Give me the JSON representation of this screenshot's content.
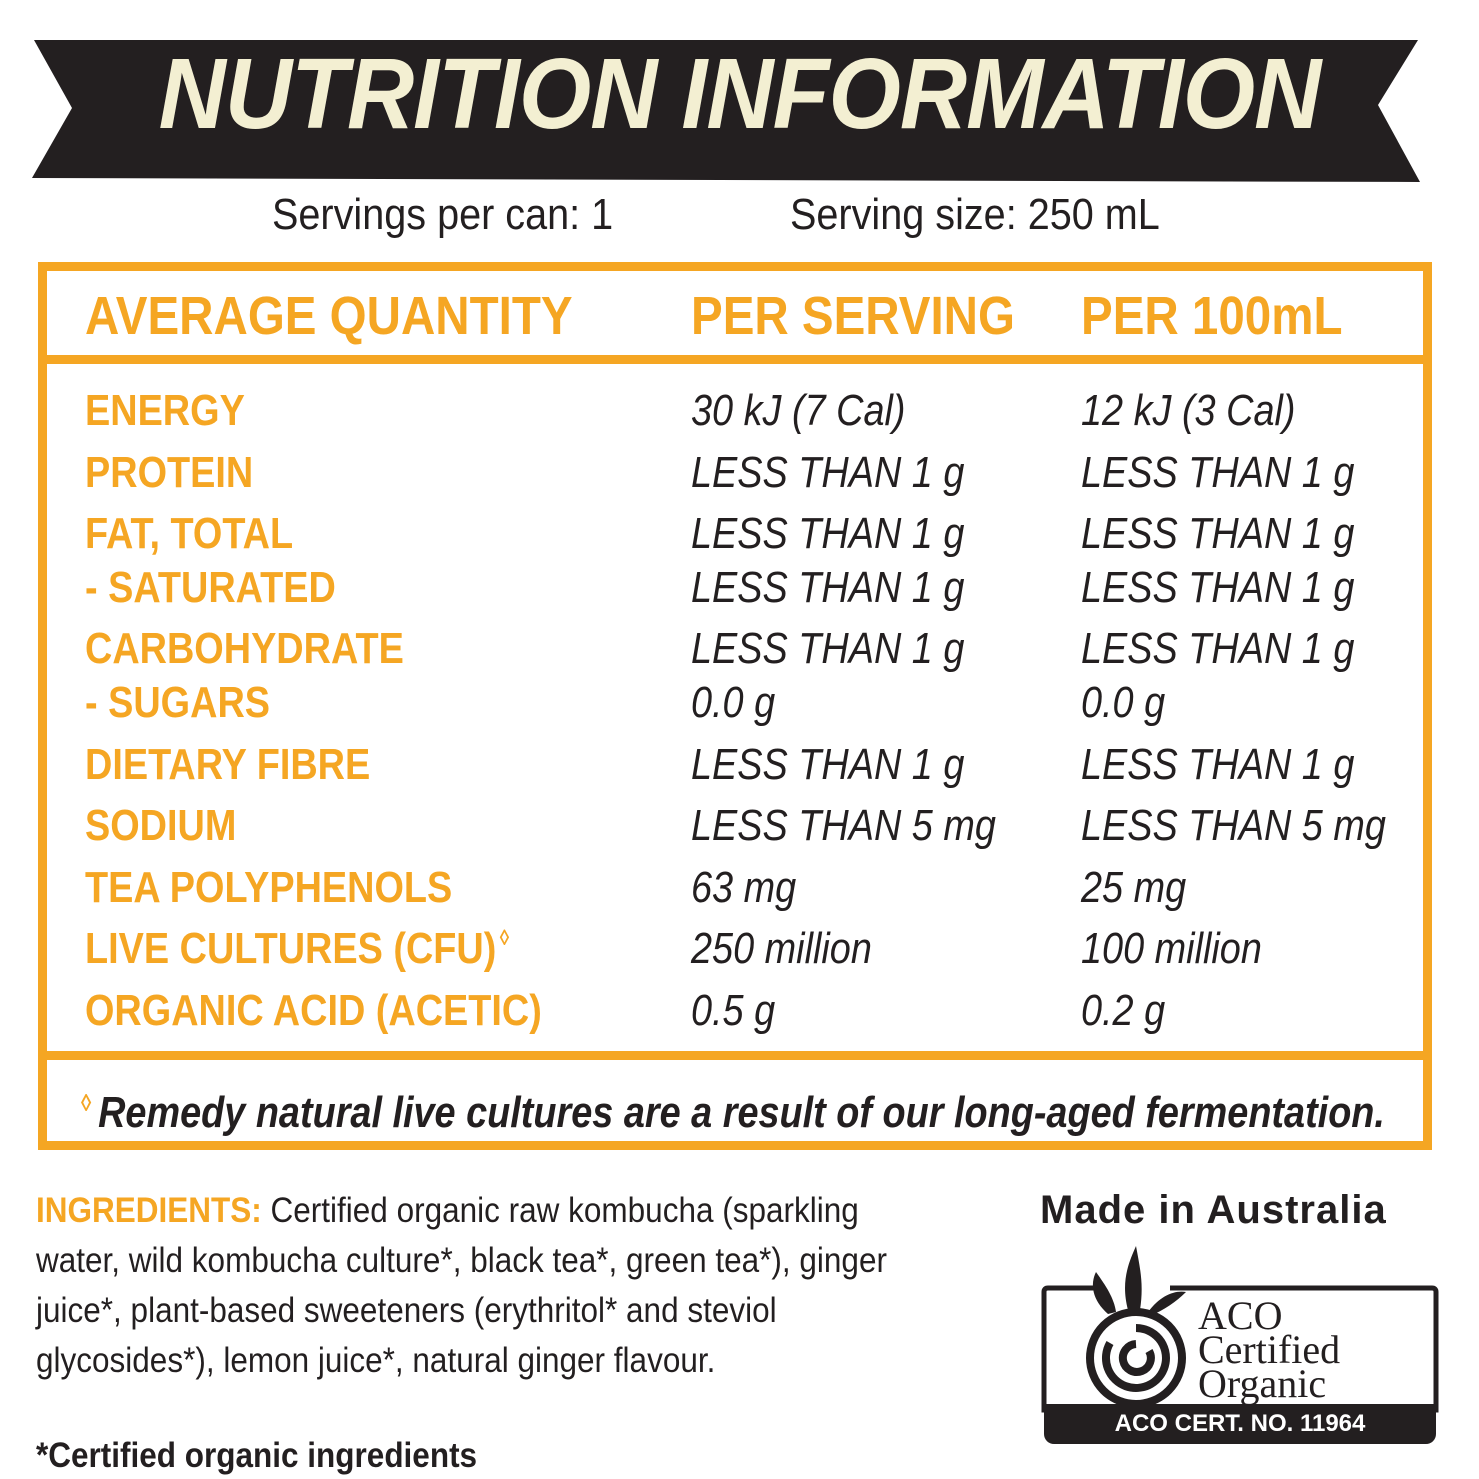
{
  "banner": {
    "title": "NUTRITION INFORMATION"
  },
  "servings": {
    "per_can": "Servings per can: 1",
    "size": "Serving size: 250 mL"
  },
  "table": {
    "headers": [
      "AVERAGE QUANTITY",
      "PER SERVING",
      "PER 100mL"
    ],
    "rows": [
      {
        "nutrient": "ENERGY",
        "per_serving": "30 kJ (7 Cal)",
        "per_100ml": "12 kJ (3 Cal)"
      },
      {
        "nutrient": "PROTEIN",
        "per_serving": "LESS THAN 1 g",
        "per_100ml": "LESS THAN 1 g"
      },
      {
        "nutrient": "FAT, TOTAL",
        "per_serving": "LESS THAN 1 g",
        "per_100ml": "LESS THAN 1 g"
      },
      {
        "nutrient": "- SATURATED",
        "per_serving": "LESS THAN 1 g",
        "per_100ml": "LESS THAN 1 g"
      },
      {
        "nutrient": "CARBOHYDRATE",
        "per_serving": "LESS THAN 1 g",
        "per_100ml": "LESS THAN 1 g"
      },
      {
        "nutrient": "- SUGARS",
        "per_serving": "0.0 g",
        "per_100ml": "0.0 g"
      },
      {
        "nutrient": "DIETARY FIBRE",
        "per_serving": "LESS THAN 1 g",
        "per_100ml": "LESS THAN 1 g"
      },
      {
        "nutrient": "SODIUM",
        "per_serving": "LESS THAN 5 mg",
        "per_100ml": "LESS THAN 5 mg"
      },
      {
        "nutrient": "TEA POLYPHENOLS",
        "per_serving": "63 mg",
        "per_100ml": "25 mg"
      },
      {
        "nutrient": "LIVE CULTURES (CFU)",
        "per_serving": "250 million",
        "per_100ml": "100 million"
      },
      {
        "nutrient": "ORGANIC ACID (ACETIC)",
        "per_serving": "0.5 g",
        "per_100ml": "0.2 g"
      }
    ],
    "footnote_mark": "◊",
    "footnote": "Remedy natural live cultures are a result of our long-aged fermentation."
  },
  "ingredients": {
    "label": "INGREDIENTS:",
    "text": " Certified organic raw kombucha (sparkling water, wild kombucha culture*, black tea*, green tea*), ginger juice*, plant-based sweeteners (erythritol* and steviol glycosides*), lemon juice*, natural ginger flavour.",
    "certified_note": "*Certified organic ingredients"
  },
  "origin": {
    "made_in": "Made in Australia"
  },
  "certification": {
    "line1": "ACO",
    "line2": "Certified",
    "line3": "Organic",
    "cert_number": "ACO CERT. NO. 11964"
  },
  "colors": {
    "accent": "#f5a623",
    "banner": "#231f20",
    "banner_text": "#f3efd2"
  }
}
